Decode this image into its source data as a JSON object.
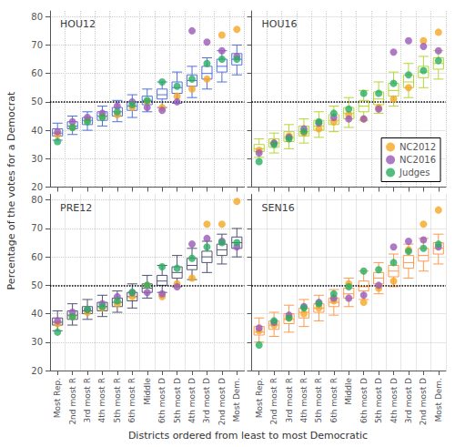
{
  "chart_data": [
    {
      "type": "box",
      "title": "HOU12",
      "categories": [
        "Most Rep.",
        "2nd most R",
        "3rd most R",
        "4th most R",
        "5th most R",
        "6th most R",
        "Middle",
        "6th most D",
        "5th most D",
        "4th most D",
        "3rd most D",
        "2nd most D",
        "Most Dem."
      ],
      "boxes": [
        {
          "med": 39.0,
          "q1": 38.0,
          "q3": 40.5,
          "whislo": 36.5,
          "whishi": 42.5
        },
        {
          "med": 41.5,
          "q1": 40.5,
          "q3": 43.0,
          "whislo": 38.5,
          "whishi": 45.0
        },
        {
          "med": 43.5,
          "q1": 42.0,
          "q3": 44.5,
          "whislo": 40.0,
          "whishi": 46.5
        },
        {
          "med": 45.0,
          "q1": 43.5,
          "q3": 46.5,
          "whislo": 41.5,
          "whishi": 48.5
        },
        {
          "med": 46.5,
          "q1": 45.0,
          "q3": 48.0,
          "whislo": 43.0,
          "whishi": 50.5
        },
        {
          "med": 48.5,
          "q1": 47.0,
          "q3": 50.0,
          "whislo": 44.5,
          "whishi": 52.5
        },
        {
          "med": 50.5,
          "q1": 49.0,
          "q3": 52.0,
          "whislo": 46.5,
          "whishi": 54.5
        },
        {
          "med": 52.5,
          "q1": 51.0,
          "q3": 54.5,
          "whislo": 48.0,
          "whishi": 57.0
        },
        {
          "med": 55.0,
          "q1": 53.0,
          "q3": 57.0,
          "whislo": 49.5,
          "whishi": 60.5
        },
        {
          "med": 57.5,
          "q1": 55.5,
          "q3": 59.5,
          "whislo": 51.5,
          "whishi": 62.5
        },
        {
          "med": 60.0,
          "q1": 58.0,
          "q3": 62.5,
          "whislo": 54.5,
          "whishi": 65.5
        },
        {
          "med": 62.5,
          "q1": 60.5,
          "q3": 65.0,
          "whislo": 57.0,
          "whishi": 68.0
        },
        {
          "med": 65.0,
          "q1": 63.0,
          "q3": 67.0,
          "whislo": 59.5,
          "whishi": 70.0
        }
      ],
      "series": [
        {
          "name": "NC2012",
          "type": "scatter",
          "color": "#F5A623",
          "values": [
            38.5,
            41.0,
            43.5,
            45.0,
            45.5,
            48.0,
            50.0,
            48.0,
            52.0,
            54.5,
            58.0,
            73.5,
            75.5
          ]
        },
        {
          "name": "NC2016",
          "type": "scatter",
          "color": "#9B59B6",
          "values": [
            39.5,
            43.0,
            44.5,
            46.0,
            48.5,
            50.0,
            48.0,
            47.0,
            50.0,
            75.0,
            71.0,
            68.0,
            66.0
          ]
        },
        {
          "name": "Judges",
          "type": "scatter",
          "color": "#27AE60",
          "values": [
            36.0,
            41.0,
            43.0,
            44.5,
            46.5,
            49.0,
            50.5,
            57.0,
            55.5,
            58.0,
            63.5,
            65.0,
            65.0
          ]
        }
      ],
      "hline_y": 50,
      "ylim": [
        20,
        82
      ],
      "yticks": [
        20,
        30,
        40,
        50,
        60,
        70,
        80
      ],
      "grid": true,
      "tick_labels": "y"
    },
    {
      "type": "box",
      "title": "HOU16",
      "categories": [
        "Most Rep.",
        "2nd most R",
        "3rd most R",
        "4th most R",
        "5th most R",
        "6th most R",
        "Middle",
        "6th most D",
        "5th most D",
        "4th most D",
        "3rd most D",
        "2nd most D",
        "Most Dem."
      ],
      "boxes": [
        {
          "med": 33.5,
          "q1": 32.5,
          "q3": 35.0,
          "whislo": 30.5,
          "whishi": 37.0
        },
        {
          "med": 35.5,
          "q1": 34.0,
          "q3": 37.0,
          "whislo": 32.0,
          "whishi": 39.0
        },
        {
          "med": 37.5,
          "q1": 36.0,
          "q3": 39.5,
          "whislo": 33.5,
          "whishi": 42.0
        },
        {
          "med": 39.5,
          "q1": 38.0,
          "q3": 41.5,
          "whislo": 35.5,
          "whishi": 44.0
        },
        {
          "med": 41.5,
          "q1": 40.0,
          "q3": 43.5,
          "whislo": 37.5,
          "whishi": 46.5
        },
        {
          "med": 43.5,
          "q1": 42.0,
          "q3": 45.5,
          "whislo": 39.5,
          "whishi": 48.5
        },
        {
          "med": 46.0,
          "q1": 44.0,
          "q3": 48.0,
          "whislo": 41.0,
          "whishi": 51.5
        },
        {
          "med": 48.5,
          "q1": 46.5,
          "q3": 50.5,
          "whislo": 43.5,
          "whishi": 54.0
        },
        {
          "med": 51.0,
          "q1": 49.0,
          "q3": 53.5,
          "whislo": 46.0,
          "whishi": 57.0
        },
        {
          "med": 54.0,
          "q1": 52.0,
          "q3": 56.5,
          "whislo": 48.5,
          "whishi": 60.5
        },
        {
          "med": 57.0,
          "q1": 55.0,
          "q3": 59.5,
          "whislo": 51.5,
          "whishi": 63.5
        },
        {
          "med": 60.5,
          "q1": 58.5,
          "q3": 62.5,
          "whislo": 55.0,
          "whishi": 66.0
        },
        {
          "med": 63.5,
          "q1": 61.5,
          "q3": 65.5,
          "whislo": 58.0,
          "whishi": 68.0
        }
      ],
      "series": [
        {
          "name": "NC2012",
          "type": "scatter",
          "color": "#F5A623",
          "values": [
            33.0,
            35.5,
            38.0,
            39.0,
            40.5,
            43.0,
            45.5,
            44.0,
            48.0,
            51.0,
            55.0,
            71.5,
            74.5
          ]
        },
        {
          "name": "NC2016",
          "type": "scatter",
          "color": "#9B59B6",
          "values": [
            32.0,
            35.5,
            37.5,
            40.5,
            42.5,
            44.5,
            44.0,
            44.0,
            47.5,
            67.5,
            71.5,
            69.5,
            68.0
          ]
        },
        {
          "name": "Judges",
          "type": "scatter",
          "color": "#27AE60",
          "values": [
            29.0,
            35.0,
            37.0,
            39.5,
            43.0,
            46.0,
            47.5,
            53.0,
            53.0,
            56.5,
            59.5,
            61.0,
            64.5
          ]
        }
      ],
      "hline_y": 50,
      "ylim": [
        20,
        82
      ],
      "yticks": [
        20,
        30,
        40,
        50,
        60,
        70,
        80
      ],
      "grid": true,
      "tick_labels": false,
      "legend": "lower right"
    },
    {
      "type": "box",
      "title": "PRE12",
      "xlabel": "Districts ordered from least to most Democratic",
      "ylabel": "Percentage of the votes for a Democrat",
      "categories": [
        "Most Rep.",
        "2nd most R",
        "3rd most R",
        "4th most R",
        "5th most R",
        "6th most R",
        "Middle",
        "6th most D",
        "5th most D",
        "4th most D",
        "3rd most D",
        "2nd most D",
        "Most Dem."
      ],
      "boxes": [
        {
          "med": 37.0,
          "q1": 36.0,
          "q3": 38.5,
          "whislo": 34.0,
          "whishi": 41.0
        },
        {
          "med": 39.5,
          "q1": 38.0,
          "q3": 41.0,
          "whislo": 36.0,
          "whishi": 43.5
        },
        {
          "med": 41.0,
          "q1": 40.0,
          "q3": 42.5,
          "whislo": 38.0,
          "whishi": 45.0
        },
        {
          "med": 42.5,
          "q1": 41.0,
          "q3": 44.0,
          "whislo": 39.0,
          "whishi": 46.5
        },
        {
          "med": 44.0,
          "q1": 42.5,
          "q3": 45.5,
          "whislo": 40.5,
          "whishi": 48.0
        },
        {
          "med": 46.0,
          "q1": 44.5,
          "q3": 47.5,
          "whislo": 42.0,
          "whishi": 50.5
        },
        {
          "med": 49.0,
          "q1": 47.5,
          "q3": 50.5,
          "whislo": 45.5,
          "whishi": 53.5
        },
        {
          "med": 51.5,
          "q1": 50.0,
          "q3": 53.5,
          "whislo": 47.5,
          "whishi": 57.0
        },
        {
          "med": 54.5,
          "q1": 52.5,
          "q3": 56.5,
          "whislo": 49.5,
          "whishi": 60.5
        },
        {
          "med": 57.0,
          "q1": 55.5,
          "q3": 59.5,
          "whislo": 52.0,
          "whishi": 63.0
        },
        {
          "med": 60.0,
          "q1": 58.0,
          "q3": 62.0,
          "whislo": 54.5,
          "whishi": 65.5
        },
        {
          "med": 62.5,
          "q1": 60.5,
          "q3": 64.5,
          "whislo": 57.5,
          "whishi": 68.0
        },
        {
          "med": 65.0,
          "q1": 63.0,
          "q3": 67.0,
          "whislo": 60.0,
          "whishi": 70.0
        }
      ],
      "series": [
        {
          "name": "NC2012",
          "type": "scatter",
          "color": "#F5A623",
          "values": [
            36.5,
            39.0,
            40.5,
            42.0,
            43.5,
            46.0,
            50.0,
            46.0,
            50.5,
            52.5,
            71.5,
            71.5,
            79.5
          ]
        },
        {
          "name": "NC2016",
          "type": "scatter",
          "color": "#9B59B6",
          "values": [
            37.5,
            40.5,
            41.5,
            43.5,
            46.0,
            47.5,
            47.5,
            47.0,
            49.5,
            64.5,
            66.5,
            65.5,
            63.5
          ]
        },
        {
          "name": "Judges",
          "type": "scatter",
          "color": "#27AE60",
          "values": [
            33.5,
            39.0,
            41.5,
            42.5,
            44.5,
            47.5,
            50.0,
            56.5,
            56.0,
            59.5,
            63.5,
            65.0,
            65.0
          ]
        }
      ],
      "hline_y": 50,
      "ylim": [
        20,
        82
      ],
      "yticks": [
        20,
        30,
        40,
        50,
        60,
        70,
        80
      ],
      "grid": true
    },
    {
      "type": "box",
      "title": "SEN16",
      "categories": [
        "Most Rep.",
        "2nd most R",
        "3rd most R",
        "4th most R",
        "5th most R",
        "6th most R",
        "Middle",
        "6th most D",
        "5th most D",
        "4th most D",
        "3rd most D",
        "2nd most D",
        "Most Dem."
      ],
      "boxes": [
        {
          "med": 33.5,
          "q1": 32.5,
          "q3": 35.5,
          "whislo": 30.0,
          "whishi": 38.5
        },
        {
          "med": 36.0,
          "q1": 34.5,
          "q3": 37.5,
          "whislo": 32.0,
          "whishi": 40.5
        },
        {
          "med": 38.0,
          "q1": 36.5,
          "q3": 40.0,
          "whislo": 33.5,
          "whishi": 43.0
        },
        {
          "med": 40.5,
          "q1": 38.5,
          "q3": 42.0,
          "whislo": 35.5,
          "whishi": 45.0
        },
        {
          "med": 42.0,
          "q1": 40.5,
          "q3": 43.5,
          "whislo": 37.5,
          "whishi": 46.5
        },
        {
          "med": 44.0,
          "q1": 42.5,
          "q3": 45.5,
          "whislo": 39.5,
          "whishi": 48.5
        },
        {
          "med": 47.0,
          "q1": 45.5,
          "q3": 49.0,
          "whislo": 42.5,
          "whishi": 52.5
        },
        {
          "med": 49.5,
          "q1": 48.0,
          "q3": 51.5,
          "whislo": 45.0,
          "whishi": 55.0
        },
        {
          "med": 52.5,
          "q1": 50.5,
          "q3": 54.5,
          "whislo": 47.0,
          "whishi": 58.0
        },
        {
          "med": 55.0,
          "q1": 53.0,
          "q3": 57.0,
          "whislo": 49.5,
          "whishi": 61.0
        },
        {
          "med": 58.0,
          "q1": 56.0,
          "q3": 60.5,
          "whislo": 52.5,
          "whishi": 64.5
        },
        {
          "med": 60.5,
          "q1": 58.5,
          "q3": 63.0,
          "whislo": 55.0,
          "whishi": 66.5
        },
        {
          "med": 63.0,
          "q1": 61.0,
          "q3": 65.0,
          "whislo": 57.5,
          "whishi": 68.0
        }
      ],
      "series": [
        {
          "name": "NC2012",
          "type": "scatter",
          "color": "#F5A623",
          "values": [
            34.0,
            36.0,
            38.5,
            40.0,
            42.0,
            44.5,
            50.5,
            44.0,
            49.0,
            51.5,
            62.5,
            71.5,
            76.5
          ]
        },
        {
          "name": "NC2016",
          "type": "scatter",
          "color": "#9B59B6",
          "values": [
            35.0,
            37.0,
            39.5,
            42.5,
            44.0,
            45.5,
            45.5,
            46.5,
            50.0,
            63.5,
            65.5,
            66.0,
            63.5
          ]
        },
        {
          "name": "Judges",
          "type": "scatter",
          "color": "#27AE60",
          "values": [
            29.0,
            37.5,
            38.5,
            42.0,
            43.5,
            47.0,
            49.5,
            55.0,
            55.5,
            58.0,
            62.0,
            63.0,
            64.5
          ]
        }
      ],
      "hline_y": 50,
      "ylim": [
        20,
        82
      ],
      "yticks": [
        20,
        30,
        40,
        50,
        60,
        70,
        80
      ],
      "grid": true,
      "tick_labels": "x"
    }
  ]
}
